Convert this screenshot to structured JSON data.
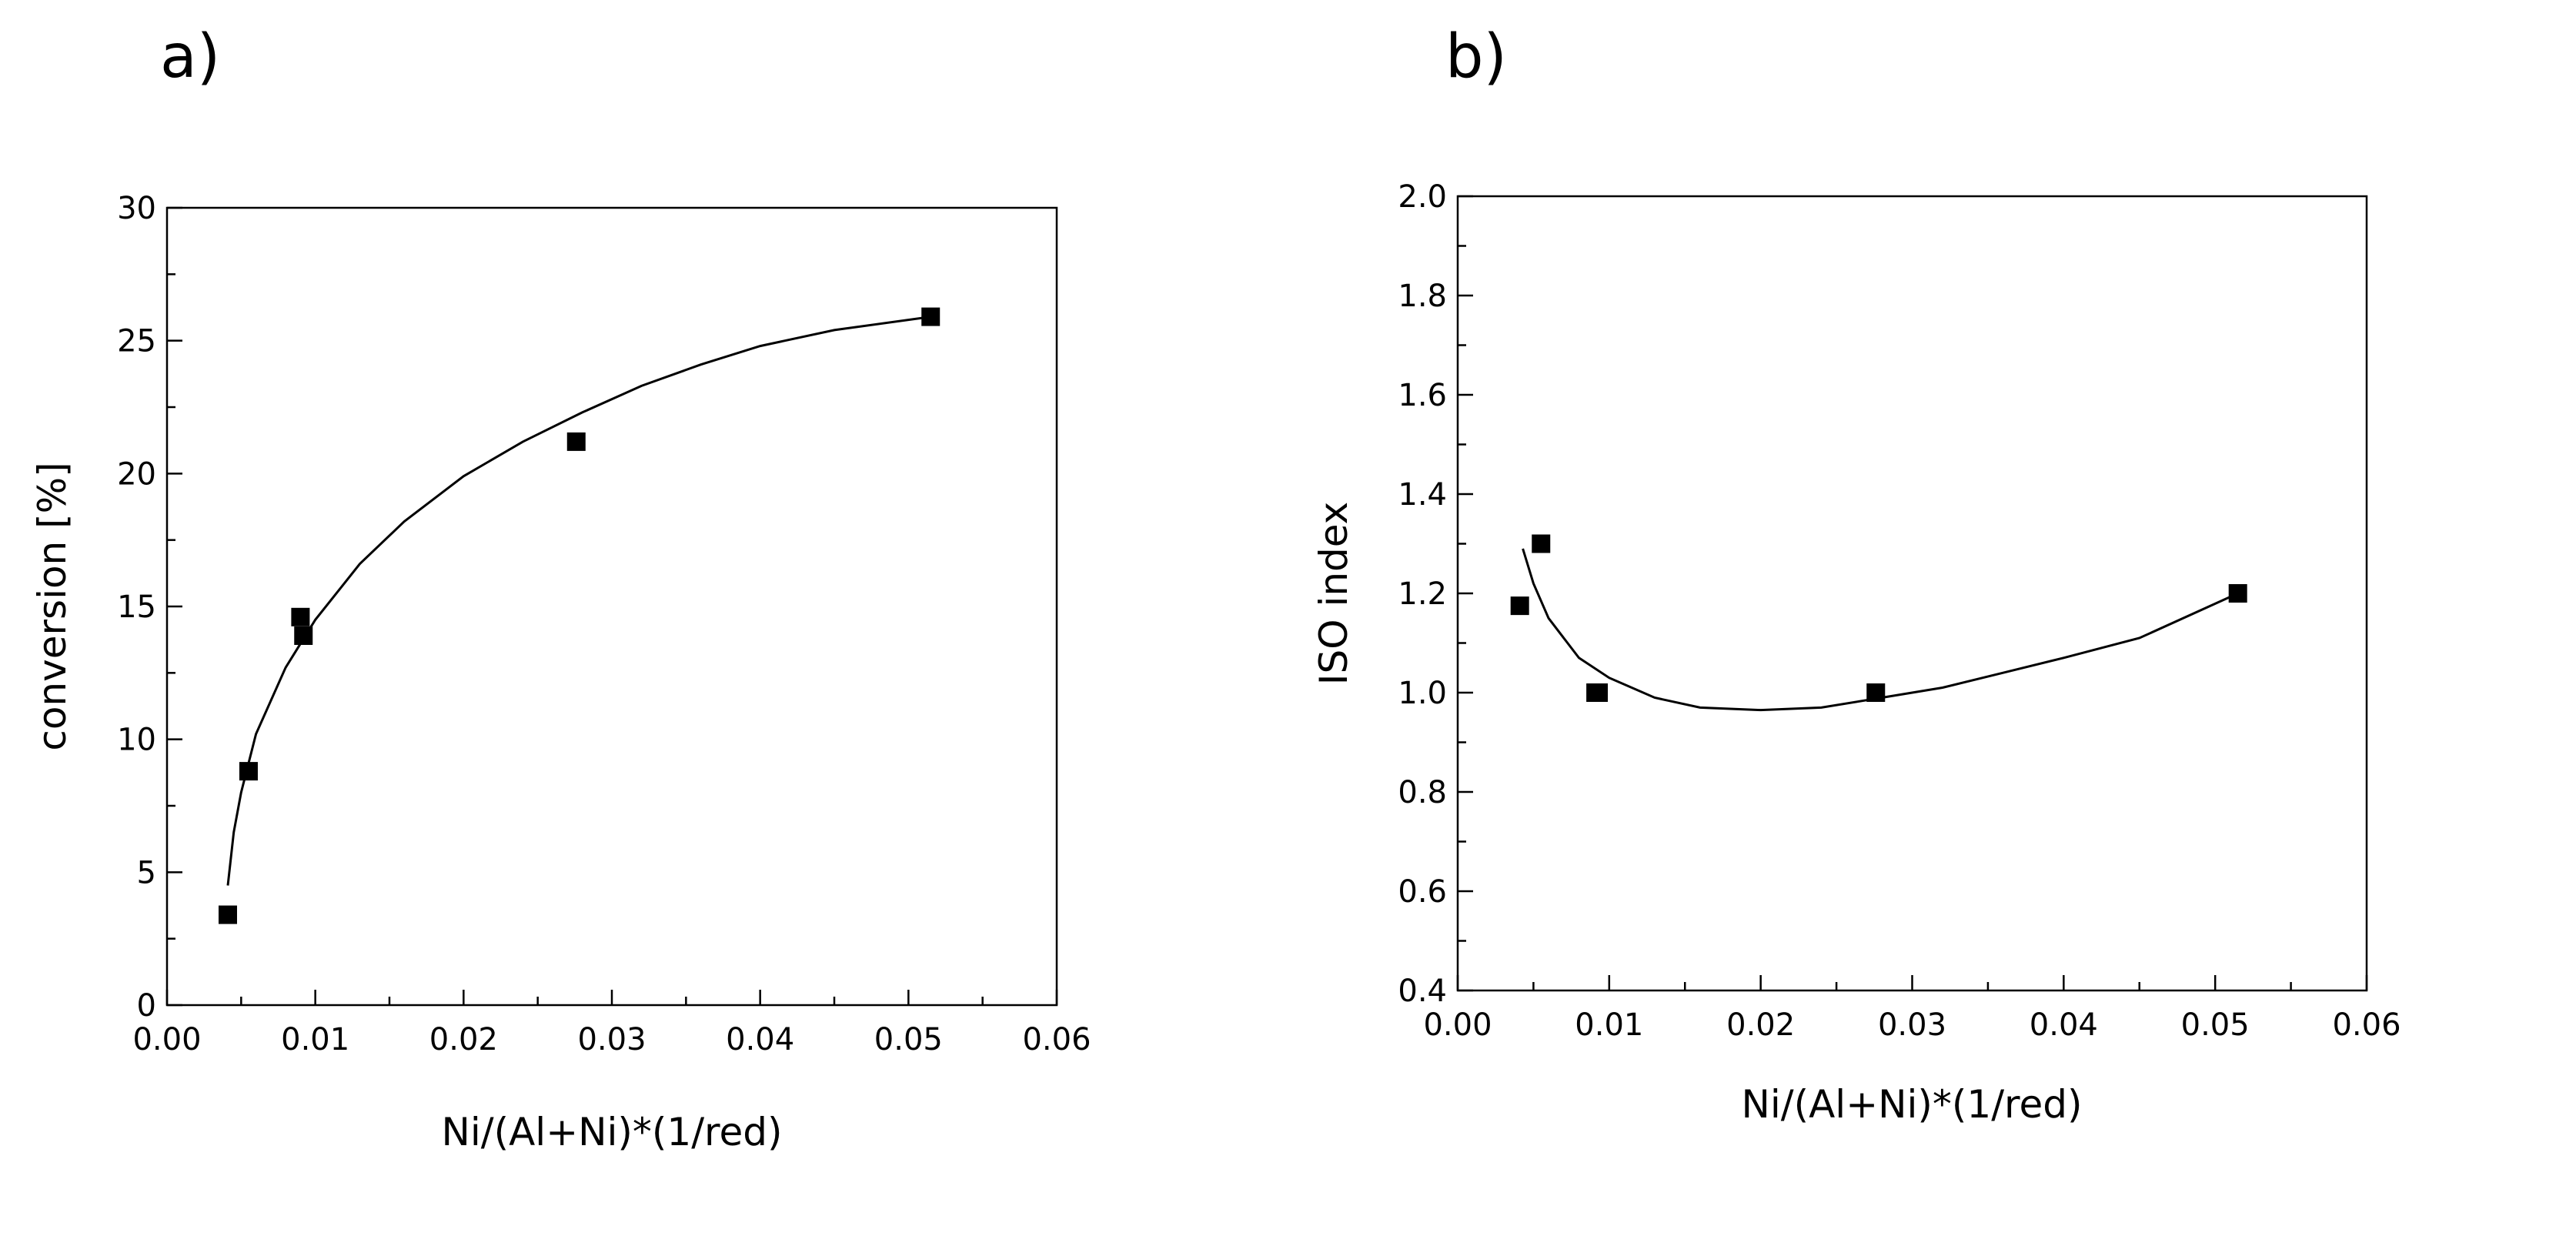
{
  "chart_data": [
    {
      "panel": "a)",
      "type": "scatter",
      "title": "",
      "xlabel": "Ni/(Al+Ni)*(1/red)",
      "ylabel": "conversion [%]",
      "xlim": [
        0.0,
        0.06
      ],
      "ylim": [
        0,
        30
      ],
      "xticks": [
        0.0,
        0.01,
        0.02,
        0.03,
        0.04,
        0.05,
        0.06
      ],
      "xtick_labels": [
        "0.00",
        "0.01",
        "0.02",
        "0.03",
        "0.04",
        "0.05",
        "0.06"
      ],
      "yticks": [
        0,
        5,
        10,
        15,
        20,
        25,
        30
      ],
      "ytick_labels": [
        "0",
        "5",
        "10",
        "15",
        "20",
        "25",
        "30"
      ],
      "points": [
        {
          "x": 0.0041,
          "y": 3.4
        },
        {
          "x": 0.0055,
          "y": 8.8
        },
        {
          "x": 0.009,
          "y": 14.6
        },
        {
          "x": 0.0092,
          "y": 13.9
        },
        {
          "x": 0.0276,
          "y": 21.2
        },
        {
          "x": 0.0515,
          "y": 25.9
        }
      ],
      "fit_curve": [
        [
          0.0041,
          4.5
        ],
        [
          0.0045,
          6.5
        ],
        [
          0.005,
          8.0
        ],
        [
          0.006,
          10.2
        ],
        [
          0.008,
          12.7
        ],
        [
          0.01,
          14.5
        ],
        [
          0.013,
          16.6
        ],
        [
          0.016,
          18.2
        ],
        [
          0.02,
          19.9
        ],
        [
          0.024,
          21.2
        ],
        [
          0.028,
          22.3
        ],
        [
          0.032,
          23.3
        ],
        [
          0.036,
          24.1
        ],
        [
          0.04,
          24.8
        ],
        [
          0.045,
          25.4
        ],
        [
          0.0515,
          25.9
        ]
      ]
    },
    {
      "panel": "b)",
      "type": "scatter",
      "title": "",
      "xlabel": "Ni/(Al+Ni)*(1/red)",
      "ylabel": "ISO index",
      "xlim": [
        0.0,
        0.06
      ],
      "ylim": [
        0.4,
        2.0
      ],
      "xticks": [
        0.0,
        0.01,
        0.02,
        0.03,
        0.04,
        0.05,
        0.06
      ],
      "xtick_labels": [
        "0.00",
        "0.01",
        "0.02",
        "0.03",
        "0.04",
        "0.05",
        "0.06"
      ],
      "yticks": [
        0.4,
        0.6,
        0.8,
        1.0,
        1.2,
        1.4,
        1.6,
        1.8,
        2.0
      ],
      "ytick_labels": [
        "0.4",
        "0.6",
        "0.8",
        "1.0",
        "1.2",
        "1.4",
        "1.6",
        "1.8",
        "2.0"
      ],
      "points": [
        {
          "x": 0.0041,
          "y": 1.175
        },
        {
          "x": 0.0055,
          "y": 1.3
        },
        {
          "x": 0.0091,
          "y": 1.0
        },
        {
          "x": 0.0093,
          "y": 1.0
        },
        {
          "x": 0.0276,
          "y": 1.0
        },
        {
          "x": 0.0515,
          "y": 1.2
        }
      ],
      "fit_curve": [
        [
          0.0043,
          1.29
        ],
        [
          0.005,
          1.22
        ],
        [
          0.006,
          1.15
        ],
        [
          0.008,
          1.07
        ],
        [
          0.01,
          1.03
        ],
        [
          0.013,
          0.99
        ],
        [
          0.016,
          0.97
        ],
        [
          0.02,
          0.965
        ],
        [
          0.024,
          0.97
        ],
        [
          0.028,
          0.99
        ],
        [
          0.032,
          1.01
        ],
        [
          0.036,
          1.04
        ],
        [
          0.04,
          1.07
        ],
        [
          0.045,
          1.11
        ],
        [
          0.0515,
          1.2
        ]
      ]
    }
  ]
}
